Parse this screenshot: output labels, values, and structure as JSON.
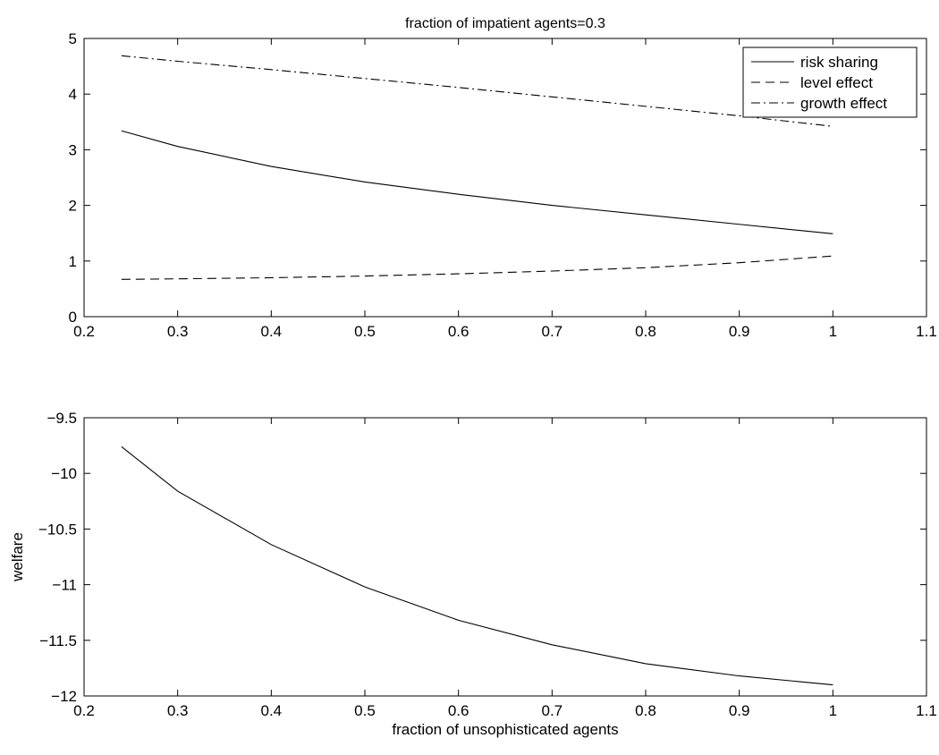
{
  "chart_data": [
    {
      "type": "line",
      "title": "fraction of impatient agents=0.3",
      "xlabel": "",
      "ylabel": "",
      "xlim": [
        0.2,
        1.1
      ],
      "ylim": [
        0,
        5
      ],
      "xticks": [
        0.2,
        0.3,
        0.4,
        0.5,
        0.6,
        0.7,
        0.8,
        0.9,
        1,
        1.1
      ],
      "xtick_labels": [
        "0.2",
        "0.3",
        "0.4",
        "0.5",
        "0.6",
        "0.7",
        "0.8",
        "0.9",
        "1",
        "1.1"
      ],
      "yticks": [
        0,
        1,
        2,
        3,
        4,
        5
      ],
      "ytick_labels": [
        "0",
        "1",
        "2",
        "3",
        "4",
        "5"
      ],
      "grid": false,
      "legend_position": "top-right",
      "x": [
        0.24,
        0.3,
        0.4,
        0.5,
        0.6,
        0.7,
        0.8,
        0.9,
        1.0
      ],
      "series": [
        {
          "name": "risk sharing",
          "style": "solid",
          "values": [
            3.34,
            3.06,
            2.7,
            2.42,
            2.2,
            2.0,
            1.83,
            1.66,
            1.49
          ]
        },
        {
          "name": "level effect",
          "style": "dashed",
          "values": [
            0.67,
            0.68,
            0.7,
            0.73,
            0.77,
            0.82,
            0.88,
            0.97,
            1.09
          ]
        },
        {
          "name": "growth effect",
          "style": "dashdot",
          "values": [
            4.69,
            4.59,
            4.44,
            4.28,
            4.12,
            3.95,
            3.78,
            3.61,
            3.42
          ]
        }
      ]
    },
    {
      "type": "line",
      "title": "",
      "xlabel": "fraction of unsophisticated agents",
      "ylabel": "welfare",
      "xlim": [
        0.2,
        1.1
      ],
      "ylim": [
        -12,
        -9.5
      ],
      "xticks": [
        0.2,
        0.3,
        0.4,
        0.5,
        0.6,
        0.7,
        0.8,
        0.9,
        1,
        1.1
      ],
      "xtick_labels": [
        "0.2",
        "0.3",
        "0.4",
        "0.5",
        "0.6",
        "0.7",
        "0.8",
        "0.9",
        "1",
        "1.1"
      ],
      "yticks": [
        -12,
        -11.5,
        -11,
        -10.5,
        -10,
        -9.5
      ],
      "ytick_labels": [
        "−12",
        "−11.5",
        "−11",
        "−10.5",
        "−10",
        "−9.5"
      ],
      "grid": false,
      "x": [
        0.24,
        0.3,
        0.4,
        0.5,
        0.6,
        0.7,
        0.8,
        0.9,
        1.0
      ],
      "series": [
        {
          "style": "solid",
          "values": [
            -9.76,
            -10.16,
            -10.64,
            -11.02,
            -11.32,
            -11.54,
            -11.71,
            -11.82,
            -11.9
          ]
        }
      ]
    }
  ]
}
